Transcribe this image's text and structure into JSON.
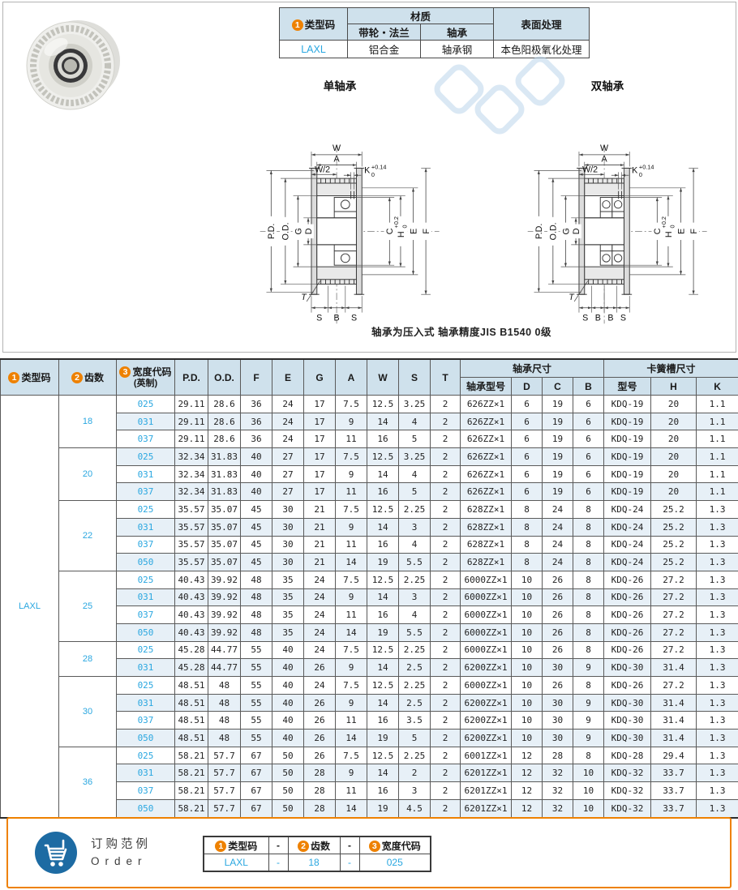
{
  "badges": {
    "b1": "1",
    "b2": "2",
    "b3": "3"
  },
  "material_table": {
    "type_label": "类型码",
    "material_header": "材质",
    "sub1": "带轮・法兰",
    "sub2": "轴承",
    "surface_header": "表面处理",
    "code": "LAXL",
    "material1": "铝合金",
    "material2": "轴承钢",
    "surface_value": "本色阳极氧化处理"
  },
  "diagrams": {
    "single_title": "单轴承",
    "double_title": "双轴承",
    "note": "轴承为压入式 轴承精度JIS B1540 0级",
    "labels": {
      "w": "W",
      "a": "A",
      "whalf": "W/2",
      "k": "K",
      "ktol_u": "+0.14",
      "ktol_d": "0",
      "pd": "P.D.",
      "od": "O.D.",
      "g": "G",
      "d": "D",
      "c": "C",
      "h": "H",
      "htol_u": "+0.2",
      "htol_d": "0",
      "e": "E",
      "f": "F",
      "t": "T",
      "s": "S",
      "b": "B"
    }
  },
  "main_table": {
    "headers": {
      "type": "类型码",
      "teeth": "齿数",
      "width": "宽度代码",
      "width_sub": "(英制)",
      "dims": [
        "P.D.",
        "O.D.",
        "F",
        "E",
        "G",
        "A",
        "W",
        "S",
        "T"
      ],
      "bearing_group": "轴承尺寸",
      "bearing_cols": [
        "轴承型号",
        "D",
        "C",
        "B"
      ],
      "ring_group": "卡簧槽尺寸",
      "ring_cols": [
        "型号",
        "H",
        "K"
      ]
    },
    "type_code": "LAXL",
    "groups": [
      {
        "teeth": "18",
        "rows": [
          {
            "width": "025",
            "vals": [
              "29.11",
              "28.6",
              "36",
              "24",
              "17",
              "7.5",
              "12.5",
              "3.25",
              "2",
              "626ZZ×1",
              "6",
              "19",
              "6",
              "KDQ-19",
              "20",
              "1.1"
            ]
          },
          {
            "width": "031",
            "vals": [
              "29.11",
              "28.6",
              "36",
              "24",
              "17",
              "9",
              "14",
              "4",
              "2",
              "626ZZ×1",
              "6",
              "19",
              "6",
              "KDQ-19",
              "20",
              "1.1"
            ]
          },
          {
            "width": "037",
            "vals": [
              "29.11",
              "28.6",
              "36",
              "24",
              "17",
              "11",
              "16",
              "5",
              "2",
              "626ZZ×1",
              "6",
              "19",
              "6",
              "KDQ-19",
              "20",
              "1.1"
            ]
          }
        ]
      },
      {
        "teeth": "20",
        "rows": [
          {
            "width": "025",
            "vals": [
              "32.34",
              "31.83",
              "40",
              "27",
              "17",
              "7.5",
              "12.5",
              "3.25",
              "2",
              "626ZZ×1",
              "6",
              "19",
              "6",
              "KDQ-19",
              "20",
              "1.1"
            ]
          },
          {
            "width": "031",
            "vals": [
              "32.34",
              "31.83",
              "40",
              "27",
              "17",
              "9",
              "14",
              "4",
              "2",
              "626ZZ×1",
              "6",
              "19",
              "6",
              "KDQ-19",
              "20",
              "1.1"
            ]
          },
          {
            "width": "037",
            "vals": [
              "32.34",
              "31.83",
              "40",
              "27",
              "17",
              "11",
              "16",
              "5",
              "2",
              "626ZZ×1",
              "6",
              "19",
              "6",
              "KDQ-19",
              "20",
              "1.1"
            ]
          }
        ]
      },
      {
        "teeth": "22",
        "rows": [
          {
            "width": "025",
            "vals": [
              "35.57",
              "35.07",
              "45",
              "30",
              "21",
              "7.5",
              "12.5",
              "2.25",
              "2",
              "628ZZ×1",
              "8",
              "24",
              "8",
              "KDQ-24",
              "25.2",
              "1.3"
            ]
          },
          {
            "width": "031",
            "vals": [
              "35.57",
              "35.07",
              "45",
              "30",
              "21",
              "9",
              "14",
              "3",
              "2",
              "628ZZ×1",
              "8",
              "24",
              "8",
              "KDQ-24",
              "25.2",
              "1.3"
            ]
          },
          {
            "width": "037",
            "vals": [
              "35.57",
              "35.07",
              "45",
              "30",
              "21",
              "11",
              "16",
              "4",
              "2",
              "628ZZ×1",
              "8",
              "24",
              "8",
              "KDQ-24",
              "25.2",
              "1.3"
            ]
          },
          {
            "width": "050",
            "vals": [
              "35.57",
              "35.07",
              "45",
              "30",
              "21",
              "14",
              "19",
              "5.5",
              "2",
              "628ZZ×1",
              "8",
              "24",
              "8",
              "KDQ-24",
              "25.2",
              "1.3"
            ]
          }
        ]
      },
      {
        "teeth": "25",
        "rows": [
          {
            "width": "025",
            "vals": [
              "40.43",
              "39.92",
              "48",
              "35",
              "24",
              "7.5",
              "12.5",
              "2.25",
              "2",
              "6000ZZ×1",
              "10",
              "26",
              "8",
              "KDQ-26",
              "27.2",
              "1.3"
            ]
          },
          {
            "width": "031",
            "vals": [
              "40.43",
              "39.92",
              "48",
              "35",
              "24",
              "9",
              "14",
              "3",
              "2",
              "6000ZZ×1",
              "10",
              "26",
              "8",
              "KDQ-26",
              "27.2",
              "1.3"
            ]
          },
          {
            "width": "037",
            "vals": [
              "40.43",
              "39.92",
              "48",
              "35",
              "24",
              "11",
              "16",
              "4",
              "2",
              "6000ZZ×1",
              "10",
              "26",
              "8",
              "KDQ-26",
              "27.2",
              "1.3"
            ]
          },
          {
            "width": "050",
            "vals": [
              "40.43",
              "39.92",
              "48",
              "35",
              "24",
              "14",
              "19",
              "5.5",
              "2",
              "6000ZZ×1",
              "10",
              "26",
              "8",
              "KDQ-26",
              "27.2",
              "1.3"
            ]
          }
        ]
      },
      {
        "teeth": "28",
        "rows": [
          {
            "width": "025",
            "vals": [
              "45.28",
              "44.77",
              "55",
              "40",
              "24",
              "7.5",
              "12.5",
              "2.25",
              "2",
              "6000ZZ×1",
              "10",
              "26",
              "8",
              "KDQ-26",
              "27.2",
              "1.3"
            ]
          },
          {
            "width": "031",
            "vals": [
              "45.28",
              "44.77",
              "55",
              "40",
              "26",
              "9",
              "14",
              "2.5",
              "2",
              "6200ZZ×1",
              "10",
              "30",
              "9",
              "KDQ-30",
              "31.4",
              "1.3"
            ]
          }
        ]
      },
      {
        "teeth": "30",
        "rows": [
          {
            "width": "025",
            "vals": [
              "48.51",
              "48",
              "55",
              "40",
              "24",
              "7.5",
              "12.5",
              "2.25",
              "2",
              "6000ZZ×1",
              "10",
              "26",
              "8",
              "KDQ-26",
              "27.2",
              "1.3"
            ]
          },
          {
            "width": "031",
            "vals": [
              "48.51",
              "48",
              "55",
              "40",
              "26",
              "9",
              "14",
              "2.5",
              "2",
              "6200ZZ×1",
              "10",
              "30",
              "9",
              "KDQ-30",
              "31.4",
              "1.3"
            ]
          },
          {
            "width": "037",
            "vals": [
              "48.51",
              "48",
              "55",
              "40",
              "26",
              "11",
              "16",
              "3.5",
              "2",
              "6200ZZ×1",
              "10",
              "30",
              "9",
              "KDQ-30",
              "31.4",
              "1.3"
            ]
          },
          {
            "width": "050",
            "vals": [
              "48.51",
              "48",
              "55",
              "40",
              "26",
              "14",
              "19",
              "5",
              "2",
              "6200ZZ×1",
              "10",
              "30",
              "9",
              "KDQ-30",
              "31.4",
              "1.3"
            ]
          }
        ]
      },
      {
        "teeth": "36",
        "rows": [
          {
            "width": "025",
            "vals": [
              "58.21",
              "57.7",
              "67",
              "50",
              "26",
              "7.5",
              "12.5",
              "2.25",
              "2",
              "6001ZZ×1",
              "12",
              "28",
              "8",
              "KDQ-28",
              "29.4",
              "1.3"
            ]
          },
          {
            "width": "031",
            "vals": [
              "58.21",
              "57.7",
              "67",
              "50",
              "28",
              "9",
              "14",
              "2",
              "2",
              "6201ZZ×1",
              "12",
              "32",
              "10",
              "KDQ-32",
              "33.7",
              "1.3"
            ]
          },
          {
            "width": "037",
            "vals": [
              "58.21",
              "57.7",
              "67",
              "50",
              "28",
              "11",
              "16",
              "3",
              "2",
              "6201ZZ×1",
              "12",
              "32",
              "10",
              "KDQ-32",
              "33.7",
              "1.3"
            ]
          },
          {
            "width": "050",
            "vals": [
              "58.21",
              "57.7",
              "67",
              "50",
              "28",
              "14",
              "19",
              "4.5",
              "2",
              "6201ZZ×1",
              "12",
              "32",
              "10",
              "KDQ-32",
              "33.7",
              "1.3"
            ]
          }
        ]
      }
    ]
  },
  "order_example": {
    "title_cn": "订购范例",
    "title_en": "Order",
    "h_type": "类型码",
    "h_teeth": "齿数",
    "h_width": "宽度代码",
    "sep": "-",
    "v_type": "LAXL",
    "v_teeth": "18",
    "v_width": "025"
  }
}
